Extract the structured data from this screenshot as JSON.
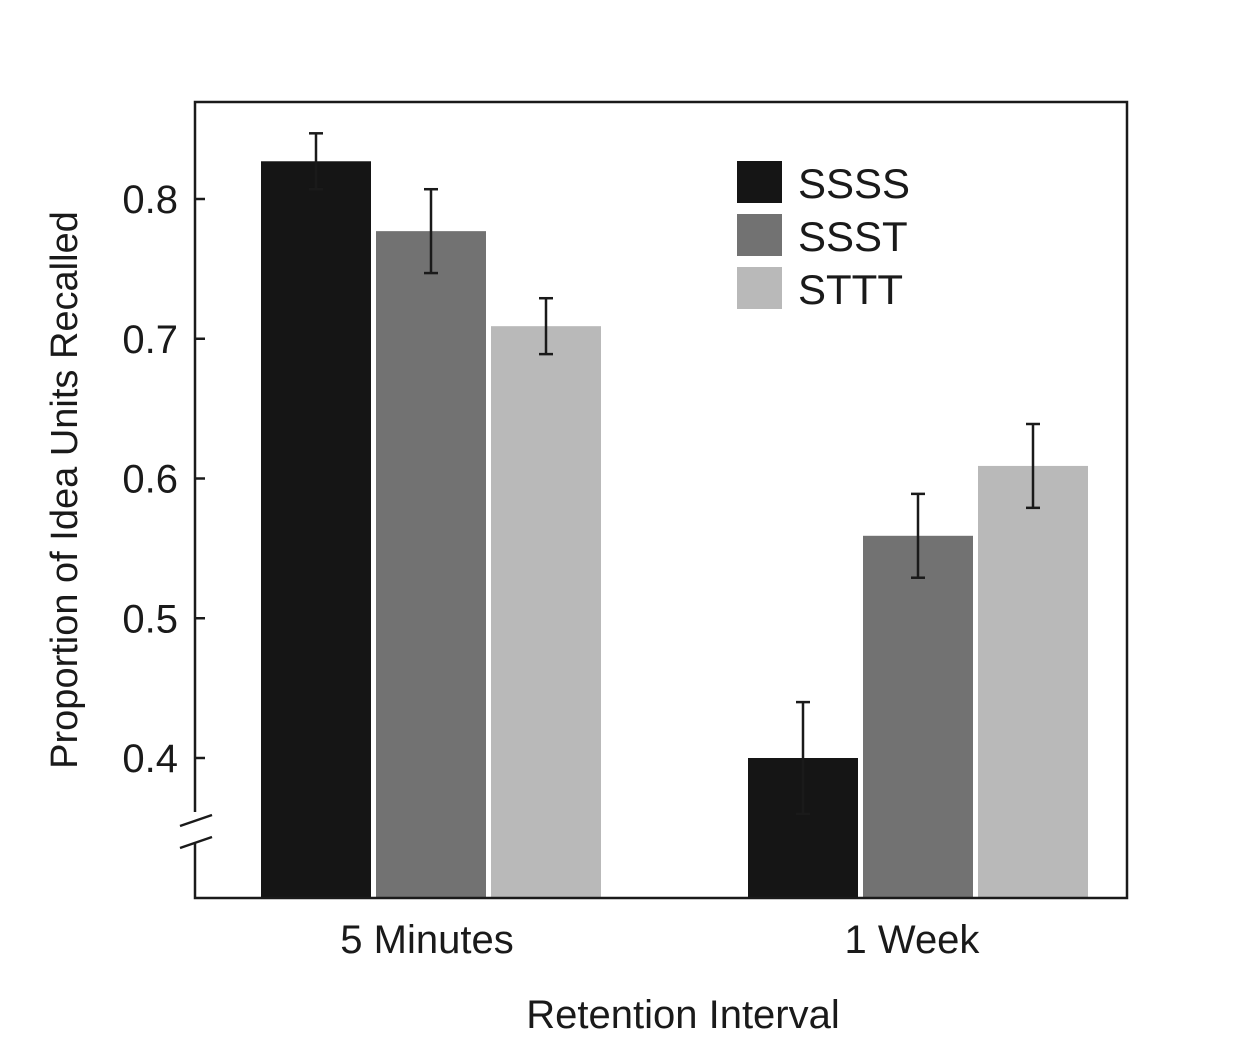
{
  "chart_data": {
    "type": "bar",
    "title": "",
    "xlabel": "Retention Interval",
    "ylabel": "Proportion of Idea Units Recalled",
    "categories": [
      "5 Minutes",
      "1 Week"
    ],
    "ylim": [
      0.3,
      0.87
    ],
    "yticks": [
      0.4,
      0.5,
      0.6,
      0.7,
      0.8
    ],
    "ytick_labels": [
      "0.4",
      "0.5",
      "0.6",
      "0.7",
      "0.8"
    ],
    "axis_break": true,
    "grid": false,
    "legend_position": "top-right",
    "series": [
      {
        "name": "SSSS",
        "color": "#151515",
        "values": [
          0.827,
          0.4
        ],
        "errors": [
          0.02,
          0.04
        ]
      },
      {
        "name": "SSST",
        "color": "#727272",
        "values": [
          0.777,
          0.559
        ],
        "errors": [
          0.03,
          0.03
        ]
      },
      {
        "name": "STTT",
        "color": "#b9b9b9",
        "values": [
          0.709,
          0.609
        ],
        "errors": [
          0.02,
          0.03
        ]
      }
    ]
  }
}
